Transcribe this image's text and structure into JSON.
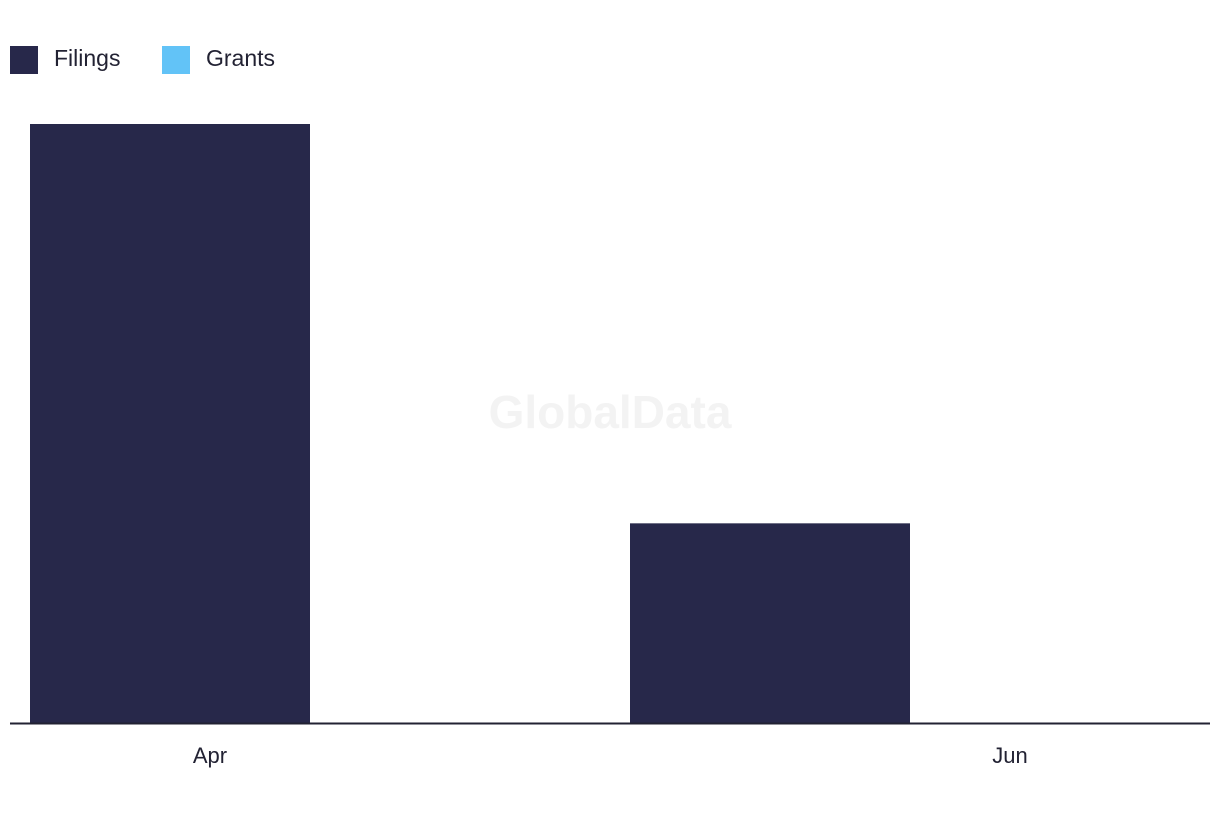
{
  "watermark": "GlobalData",
  "chart_data": {
    "type": "bar",
    "categories": [
      "Apr",
      "Jun"
    ],
    "series": [
      {
        "name": "Filings",
        "values": [
          3,
          1
        ],
        "color": "#27284a"
      },
      {
        "name": "Grants",
        "values": [
          0,
          0
        ],
        "color": "#62c3f7"
      }
    ],
    "ylim": [
      0,
      3
    ],
    "grid": false,
    "legend_position": "top-left"
  }
}
